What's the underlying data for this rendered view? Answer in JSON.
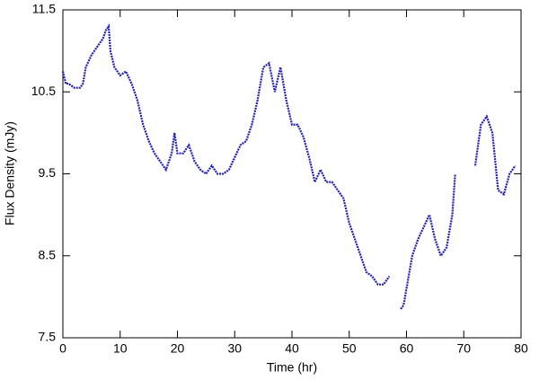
{
  "chart_data": {
    "type": "line",
    "x_label": "Time (hr)",
    "y_label": "Flux Density (mJy)",
    "x": [
      0,
      0.5,
      1,
      2,
      3,
      3.5,
      4,
      5,
      6,
      7,
      7.5,
      8,
      8.3,
      9,
      10,
      11,
      12,
      13,
      14,
      15,
      16,
      17,
      18,
      19,
      19.5,
      20,
      21,
      22,
      23,
      24,
      25,
      26,
      27,
      28,
      29,
      30,
      31,
      32,
      33,
      34,
      35,
      36,
      37,
      38,
      39,
      40,
      41,
      42,
      43,
      44,
      45,
      46,
      47,
      48,
      49,
      50,
      51,
      52,
      53,
      54,
      55,
      56,
      57,
      58,
      59,
      59.5,
      60,
      61,
      62,
      63,
      64,
      65,
      66,
      67,
      68,
      68.5,
      70,
      72,
      73,
      74,
      75,
      76,
      77,
      78,
      79
    ],
    "values": [
      10.75,
      10.6,
      10.6,
      10.55,
      10.55,
      10.6,
      10.8,
      10.95,
      11.05,
      11.15,
      11.25,
      11.3,
      11.0,
      10.8,
      10.7,
      10.75,
      10.6,
      10.4,
      10.1,
      9.9,
      9.75,
      9.65,
      9.55,
      9.75,
      10.0,
      9.75,
      9.75,
      9.85,
      9.65,
      9.55,
      9.5,
      9.6,
      9.5,
      9.5,
      9.55,
      9.7,
      9.85,
      9.9,
      10.1,
      10.4,
      10.8,
      10.85,
      10.5,
      10.8,
      10.4,
      10.1,
      10.1,
      9.95,
      9.7,
      9.4,
      9.55,
      9.4,
      9.4,
      9.3,
      9.2,
      8.9,
      8.7,
      8.5,
      8.3,
      8.25,
      8.15,
      8.15,
      8.25,
      null,
      7.85,
      7.9,
      8.1,
      8.5,
      8.7,
      8.85,
      9.0,
      8.7,
      8.5,
      8.6,
      9.0,
      9.5,
      null,
      9.6,
      10.1,
      10.2,
      10.0,
      9.3,
      9.25,
      9.5,
      9.6
    ],
    "color": "#1f1fb4",
    "xlim": [
      0,
      80
    ],
    "xticks": [
      0,
      10,
      20,
      30,
      40,
      50,
      60,
      70,
      80
    ],
    "ylim": [
      7.5,
      11.5
    ],
    "yticks": [
      7.5,
      8.5,
      9.5,
      10.5,
      11.5
    ]
  }
}
